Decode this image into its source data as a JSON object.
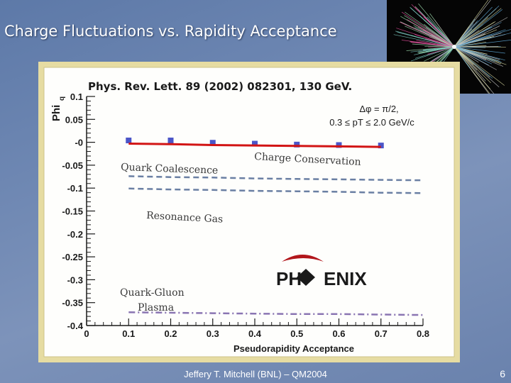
{
  "slide": {
    "title": "Charge Fluctuations vs. Rapidity Acceptance",
    "footer": "Jeffery T. Mitchell (BNL) – QM2004",
    "page_number": "6"
  },
  "chart_data": {
    "type": "scatter",
    "title": "Phys. Rev. Lett. 89 (2002) 082301, 130 GeV.",
    "xlabel": "Pseudorapidity Acceptance",
    "ylabel": "Phi",
    "ylabel_sub": "q",
    "xlim": [
      0,
      0.8
    ],
    "ylim": [
      -0.4,
      0.1
    ],
    "x_ticks": [
      "0",
      "0.1",
      "0.2",
      "0.3",
      "0.4",
      "0.5",
      "0.6",
      "0.7",
      "0.8"
    ],
    "y_ticks": [
      "0.1",
      "0.05",
      "-0",
      "-0.05",
      "-0.1",
      "-0.15",
      "-0.2",
      "-0.25",
      "-0.3",
      "-0.35",
      "-0.4"
    ],
    "cut_label_line1": "Δφ = π/2,",
    "cut_label_line2": "0.3 ≤ pT ≤ 2.0 GeV/c",
    "series": [
      {
        "name": "",
        "kind": "points",
        "color": "#4b55c8",
        "x": [
          0.1,
          0.2,
          0.3,
          0.4,
          0.5,
          0.6,
          0.7
        ],
        "y": [
          0.004,
          0.004,
          -0.001,
          -0.003,
          -0.005,
          -0.006,
          -0.007
        ]
      },
      {
        "name": "Charge Conservation",
        "kind": "line",
        "color": "#d21414",
        "dash": "solid",
        "x": [
          0.1,
          0.2,
          0.3,
          0.4,
          0.5,
          0.6,
          0.7
        ],
        "y": [
          -0.003,
          -0.004,
          -0.006,
          -0.007,
          -0.008,
          -0.009,
          -0.01
        ]
      },
      {
        "name": "Quark Coalescence",
        "kind": "line",
        "color": "#6a7fa3",
        "dash": "dashed",
        "x": [
          0.1,
          0.2,
          0.3,
          0.4,
          0.5,
          0.6,
          0.7,
          0.8
        ],
        "y": [
          -0.074,
          -0.076,
          -0.077,
          -0.079,
          -0.08,
          -0.081,
          -0.082,
          -0.083
        ]
      },
      {
        "name": "Resonance Gas",
        "kind": "line",
        "color": "#6a7fa3",
        "dash": "dashed",
        "x": [
          0.1,
          0.2,
          0.3,
          0.4,
          0.5,
          0.6,
          0.7,
          0.8
        ],
        "y": [
          -0.101,
          -0.103,
          -0.104,
          -0.106,
          -0.107,
          -0.108,
          -0.11,
          -0.111
        ]
      },
      {
        "name": "Quark-Gluon Plasma",
        "kind": "line",
        "color": "#8a75b2",
        "dash": "dashdot",
        "x": [
          0.1,
          0.2,
          0.3,
          0.4,
          0.5,
          0.6,
          0.7,
          0.8
        ],
        "y": [
          -0.371,
          -0.372,
          -0.373,
          -0.374,
          -0.375,
          -0.375,
          -0.376,
          -0.377
        ]
      }
    ],
    "annotations": {
      "charge_conservation": "Charge Conservation",
      "quark_coalescence": "Quark Coalescence",
      "resonance_gas": "Resonance Gas",
      "qgp_line1": "Quark-Gluon",
      "qgp_line2": "Plasma"
    },
    "logo": {
      "left": "PH",
      "right": "ENIX",
      "glyph": "phoenix-logo-icon",
      "color": "#1a1a1a",
      "accent": "#b2161b"
    }
  },
  "colors": {
    "panel_bg": "#e6dca2",
    "plot_bg": "#ffffff",
    "background": "#6f88b3"
  }
}
